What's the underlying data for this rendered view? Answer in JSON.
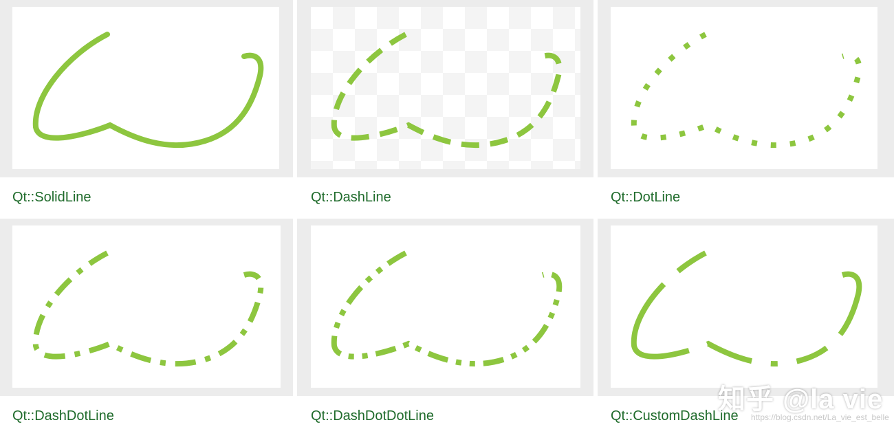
{
  "colors": {
    "stroke": "#8dc63f",
    "caption": "#1f6b2b",
    "panel": "#ececec"
  },
  "panels": [
    {
      "caption": "Qt::SolidLine",
      "style": "solid"
    },
    {
      "caption": "Qt::DashLine",
      "style": "dash"
    },
    {
      "caption": "Qt::DotLine",
      "style": "dot"
    },
    {
      "caption": "Qt::DashDotLine",
      "style": "dashdot"
    },
    {
      "caption": "Qt::DashDotDotLine",
      "style": "dashdotdot"
    },
    {
      "caption": "Qt::CustomDashLine",
      "style": "custom"
    }
  ],
  "watermark": {
    "text": "知乎 @la vie",
    "url": "https://blog.csdn.net/La_vie_est_belle"
  }
}
